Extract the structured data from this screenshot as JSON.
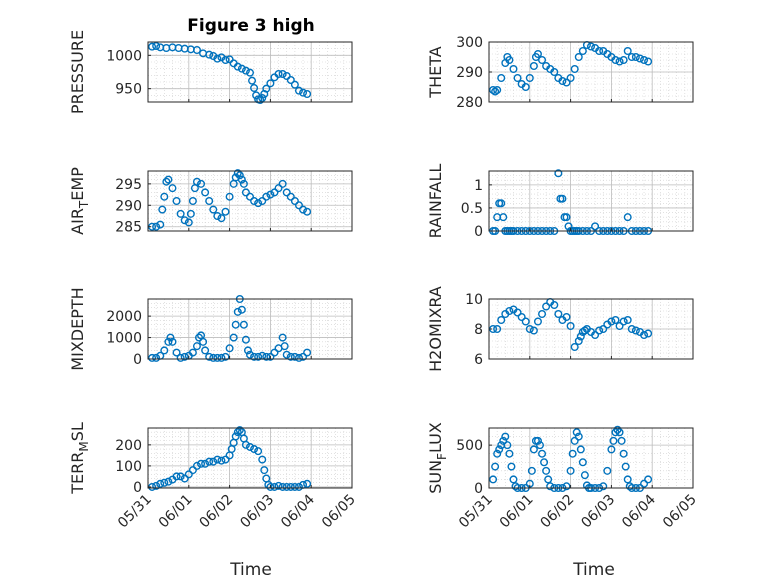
{
  "figure": {
    "title": "Figure 3 high",
    "xlabel": "Time",
    "marker_color": "#0072BD",
    "axes_color": "#262626",
    "grid": true,
    "x_tick_labels": [
      "05/31",
      "06/01",
      "06/02",
      "06/03",
      "06/04",
      "06/05"
    ]
  },
  "chart_data": [
    {
      "type": "scatter",
      "ylabel": "PRESSURE",
      "ylim": [
        930,
        1020
      ],
      "yticks": [
        950,
        1000
      ],
      "x_days": [
        0.1,
        0.2,
        0.3,
        0.45,
        0.6,
        0.75,
        0.9,
        1.05,
        1.2,
        1.35,
        1.5,
        1.6,
        1.7,
        1.8,
        1.9,
        2.0,
        2.1,
        2.2,
        2.3,
        2.4,
        2.5,
        2.55,
        2.6,
        2.65,
        2.7,
        2.75,
        2.8,
        2.85,
        2.9,
        3.0,
        3.1,
        3.2,
        3.3,
        3.4,
        3.5,
        3.6,
        3.7,
        3.8,
        3.9
      ],
      "values": [
        1013,
        1014,
        1012,
        1011,
        1012,
        1011,
        1010,
        1009,
        1008,
        1003,
        1001,
        999,
        995,
        997,
        993,
        994,
        988,
        983,
        980,
        977,
        974,
        962,
        951,
        940,
        934,
        933,
        936,
        942,
        950,
        958,
        967,
        972,
        972,
        969,
        963,
        956,
        947,
        944,
        942
      ]
    },
    {
      "type": "scatter",
      "ylabel": "THETA",
      "ylim": [
        280,
        300
      ],
      "yticks": [
        280,
        290,
        300
      ],
      "x_days": [
        0.1,
        0.15,
        0.2,
        0.3,
        0.4,
        0.45,
        0.5,
        0.6,
        0.7,
        0.8,
        0.9,
        1.0,
        1.1,
        1.15,
        1.2,
        1.3,
        1.4,
        1.5,
        1.6,
        1.7,
        1.8,
        1.9,
        2.0,
        2.1,
        2.2,
        2.3,
        2.4,
        2.5,
        2.6,
        2.7,
        2.8,
        2.9,
        3.0,
        3.1,
        3.2,
        3.3,
        3.4,
        3.5,
        3.6,
        3.7,
        3.8,
        3.9
      ],
      "values": [
        284,
        283.5,
        284,
        288,
        293,
        295,
        294,
        291,
        288,
        286,
        285,
        288,
        292,
        295,
        296,
        294,
        292,
        291,
        290,
        288,
        287,
        286.5,
        288,
        291,
        295,
        297,
        299,
        298.5,
        298,
        297,
        297,
        296,
        295,
        294,
        293.5,
        294,
        297,
        295,
        295,
        294.5,
        294,
        293.5
      ]
    },
    {
      "type": "scatter",
      "ylabel": "AIR_TEMP",
      "ylim": [
        284,
        298
      ],
      "yticks": [
        285,
        290,
        295
      ],
      "x_days": [
        0.1,
        0.2,
        0.3,
        0.35,
        0.4,
        0.45,
        0.5,
        0.6,
        0.7,
        0.8,
        0.9,
        1.0,
        1.05,
        1.1,
        1.15,
        1.2,
        1.3,
        1.4,
        1.5,
        1.6,
        1.7,
        1.8,
        1.9,
        2.0,
        2.1,
        2.15,
        2.2,
        2.25,
        2.3,
        2.35,
        2.4,
        2.5,
        2.6,
        2.7,
        2.8,
        2.9,
        3.0,
        3.1,
        3.2,
        3.3,
        3.4,
        3.5,
        3.6,
        3.7,
        3.8,
        3.9
      ],
      "values": [
        285,
        285,
        285.5,
        289,
        292,
        295.5,
        296,
        294,
        291,
        288,
        286.5,
        286,
        288,
        291,
        294,
        295.5,
        295,
        293,
        291,
        289,
        287.5,
        287,
        288.5,
        292,
        295,
        296.5,
        297.5,
        297,
        296,
        295,
        293,
        292,
        291,
        290.5,
        291,
        292,
        292.5,
        293,
        294,
        295,
        293,
        292,
        291,
        290,
        289,
        288.5
      ]
    },
    {
      "type": "scatter",
      "ylabel": "RAINFALL",
      "ylim": [
        0,
        1.3
      ],
      "yticks": [
        0,
        0.5,
        1
      ],
      "ytick_labels": [
        "0",
        "0.5",
        "1"
      ],
      "x_days": [
        0.1,
        0.15,
        0.2,
        0.25,
        0.3,
        0.35,
        0.4,
        0.45,
        0.5,
        0.55,
        0.6,
        0.7,
        0.8,
        0.9,
        1.0,
        1.1,
        1.2,
        1.3,
        1.4,
        1.5,
        1.6,
        1.7,
        1.75,
        1.8,
        1.85,
        1.9,
        1.95,
        2.0,
        2.05,
        2.1,
        2.15,
        2.2,
        2.3,
        2.4,
        2.5,
        2.6,
        2.7,
        2.8,
        2.9,
        3.0,
        3.1,
        3.2,
        3.3,
        3.4,
        3.5,
        3.6,
        3.7,
        3.8,
        3.9
      ],
      "values": [
        0,
        0,
        0.3,
        0.6,
        0.6,
        0.3,
        0,
        0,
        0,
        0,
        0,
        0,
        0,
        0,
        0,
        0,
        0,
        0,
        0,
        0,
        0,
        1.25,
        0.7,
        0.7,
        0.3,
        0.3,
        0.1,
        0,
        0,
        0,
        0,
        0,
        0,
        0,
        0,
        0.1,
        0,
        0,
        0,
        0,
        0,
        0,
        0,
        0.3,
        0,
        0,
        0,
        0,
        0
      ]
    },
    {
      "type": "scatter",
      "ylabel": "MIXDEPTH",
      "ylim": [
        0,
        2800
      ],
      "yticks": [
        0,
        1000,
        2000
      ],
      "x_days": [
        0.1,
        0.2,
        0.3,
        0.4,
        0.5,
        0.55,
        0.6,
        0.7,
        0.8,
        0.9,
        1.0,
        1.1,
        1.2,
        1.25,
        1.3,
        1.35,
        1.4,
        1.5,
        1.6,
        1.7,
        1.8,
        1.9,
        2.0,
        2.1,
        2.15,
        2.2,
        2.25,
        2.3,
        2.35,
        2.4,
        2.45,
        2.5,
        2.6,
        2.7,
        2.8,
        2.9,
        3.0,
        3.1,
        3.2,
        3.3,
        3.35,
        3.4,
        3.5,
        3.6,
        3.7,
        3.8,
        3.9
      ],
      "values": [
        50,
        50,
        150,
        400,
        800,
        1000,
        800,
        300,
        50,
        100,
        150,
        300,
        600,
        1000,
        1100,
        800,
        400,
        100,
        50,
        50,
        50,
        100,
        500,
        1000,
        1600,
        2200,
        2800,
        2300,
        1600,
        900,
        400,
        200,
        100,
        100,
        150,
        100,
        100,
        300,
        500,
        1000,
        600,
        200,
        100,
        100,
        50,
        100,
        300
      ]
    },
    {
      "type": "scatter",
      "ylabel": "H2OMIXRA",
      "ylim": [
        6,
        10
      ],
      "yticks": [
        6,
        8,
        10
      ],
      "x_days": [
        0.1,
        0.2,
        0.3,
        0.4,
        0.5,
        0.6,
        0.7,
        0.8,
        0.9,
        1.0,
        1.1,
        1.2,
        1.3,
        1.4,
        1.5,
        1.6,
        1.7,
        1.8,
        1.9,
        2.0,
        2.1,
        2.2,
        2.25,
        2.3,
        2.35,
        2.4,
        2.5,
        2.6,
        2.7,
        2.8,
        2.9,
        3.0,
        3.1,
        3.2,
        3.3,
        3.4,
        3.5,
        3.6,
        3.7,
        3.8,
        3.9
      ],
      "values": [
        8,
        8,
        8.6,
        9,
        9.2,
        9.3,
        9.1,
        8.8,
        8.5,
        8,
        7.9,
        8.5,
        9,
        9.5,
        9.8,
        9.6,
        9,
        8.6,
        8.8,
        8.2,
        6.8,
        7.2,
        7.5,
        7.8,
        7.9,
        8,
        7.8,
        7.6,
        7.9,
        8,
        8.3,
        8.5,
        8.6,
        8.2,
        8.5,
        8.6,
        8,
        7.9,
        7.8,
        7.6,
        7.7
      ]
    },
    {
      "type": "scatter",
      "ylabel": "TERR_MSL",
      "ylim": [
        -5,
        280
      ],
      "yticks": [
        0,
        100,
        200
      ],
      "x_days": [
        0.1,
        0.2,
        0.3,
        0.4,
        0.5,
        0.6,
        0.7,
        0.8,
        0.9,
        1.0,
        1.1,
        1.2,
        1.3,
        1.4,
        1.5,
        1.6,
        1.7,
        1.8,
        1.9,
        2.0,
        2.05,
        2.1,
        2.15,
        2.2,
        2.25,
        2.3,
        2.35,
        2.4,
        2.5,
        2.6,
        2.7,
        2.8,
        2.85,
        2.9,
        2.95,
        3.0,
        3.1,
        3.2,
        3.3,
        3.4,
        3.5,
        3.6,
        3.7,
        3.8,
        3.9
      ],
      "values": [
        0,
        5,
        15,
        20,
        25,
        35,
        50,
        50,
        40,
        60,
        80,
        100,
        110,
        110,
        120,
        120,
        130,
        125,
        130,
        150,
        180,
        210,
        240,
        260,
        270,
        260,
        230,
        200,
        190,
        180,
        170,
        130,
        80,
        40,
        10,
        0,
        0,
        5,
        0,
        0,
        0,
        0,
        0,
        10,
        15
      ]
    },
    {
      "type": "scatter",
      "ylabel": "SUN_FLUX",
      "ylim": [
        0,
        700
      ],
      "yticks": [
        0,
        500
      ],
      "x_days": [
        0.1,
        0.15,
        0.2,
        0.25,
        0.3,
        0.35,
        0.4,
        0.45,
        0.5,
        0.55,
        0.6,
        0.65,
        0.7,
        0.8,
        0.9,
        1.0,
        1.05,
        1.1,
        1.15,
        1.2,
        1.25,
        1.3,
        1.35,
        1.4,
        1.45,
        1.5,
        1.6,
        1.7,
        1.8,
        1.9,
        2.0,
        2.05,
        2.1,
        2.15,
        2.2,
        2.25,
        2.3,
        2.35,
        2.4,
        2.45,
        2.5,
        2.6,
        2.7,
        2.8,
        2.9,
        3.0,
        3.05,
        3.1,
        3.15,
        3.2,
        3.25,
        3.3,
        3.35,
        3.4,
        3.45,
        3.5,
        3.6,
        3.7,
        3.8,
        3.9
      ],
      "values": [
        100,
        250,
        400,
        450,
        500,
        550,
        600,
        500,
        400,
        250,
        100,
        20,
        0,
        0,
        0,
        50,
        200,
        450,
        550,
        550,
        500,
        400,
        300,
        200,
        100,
        20,
        0,
        0,
        0,
        20,
        200,
        400,
        550,
        650,
        600,
        450,
        300,
        150,
        30,
        0,
        0,
        0,
        0,
        20,
        200,
        450,
        550,
        650,
        680,
        650,
        550,
        400,
        250,
        100,
        20,
        0,
        0,
        0,
        50,
        100
      ]
    }
  ]
}
